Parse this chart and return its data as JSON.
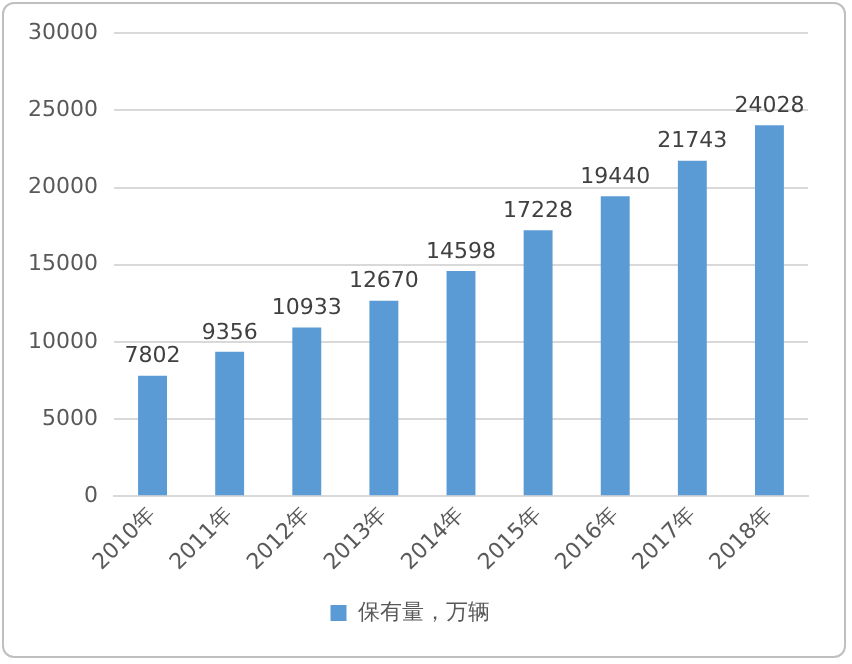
{
  "chart_data": {
    "type": "bar",
    "categories": [
      "2010年",
      "2011年",
      "2012年",
      "2013年",
      "2014年",
      "2015年",
      "2016年",
      "2017年",
      "2018年"
    ],
    "series": [
      {
        "name": "保有量，万辆",
        "color": "#5b9bd5",
        "values": [
          7802,
          9356,
          10933,
          12670,
          14598,
          17228,
          19440,
          21743,
          24028
        ]
      }
    ],
    "ylim": [
      0,
      30000
    ],
    "yticks": [
      0,
      5000,
      10000,
      15000,
      20000,
      25000,
      30000
    ],
    "grid": "y",
    "legend": "bottom",
    "data_labels": true
  }
}
